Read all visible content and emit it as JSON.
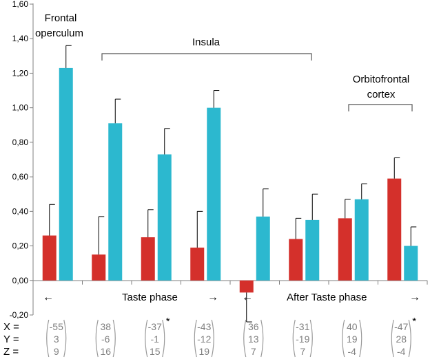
{
  "chart_data": {
    "type": "bar",
    "ylim": [
      -0.2,
      1.6
    ],
    "y_ticks": [
      "-0,20",
      "0,00",
      "0,20",
      "0,40",
      "0,60",
      "0,80",
      "1,00",
      "1,20",
      "1,40",
      "1,60"
    ],
    "y_tick_values": [
      -0.2,
      0,
      0.2,
      0.4,
      0.6,
      0.8,
      1.0,
      1.2,
      1.4,
      1.6
    ],
    "grid": false,
    "series": [
      {
        "name": "red",
        "color": "#d4302b",
        "values": [
          0.26,
          0.15,
          0.25,
          0.19,
          -0.07,
          0.24,
          0.36,
          0.59
        ],
        "errors": [
          0.18,
          0.22,
          0.16,
          0.21,
          0.17,
          0.12,
          0.11,
          0.12
        ]
      },
      {
        "name": "cyan",
        "color": "#2cb8cf",
        "values": [
          1.23,
          0.91,
          0.73,
          1.0,
          0.37,
          0.35,
          0.47,
          0.2
        ],
        "errors": [
          0.13,
          0.14,
          0.15,
          0.1,
          0.16,
          0.15,
          0.09,
          0.11
        ]
      }
    ],
    "annotations": {
      "frontal_line1": "Frontal",
      "frontal_line2": "operculum",
      "insula": "Insula",
      "orbito_line1": "Orbitofrontal",
      "orbito_line2": "cortex",
      "taste_phase": "Taste phase",
      "after_taste_phase": "After Taste phase",
      "arrow_left": "←",
      "arrow_right": "→"
    },
    "coordinate_labels": [
      "X =",
      "Y =",
      "Z ="
    ],
    "coordinates": [
      {
        "x": "-55",
        "y": "3",
        "z": "9",
        "star": ""
      },
      {
        "x": "38",
        "y": "-6",
        "z": "16",
        "star": ""
      },
      {
        "x": "-37",
        "y": "-1",
        "z": "15",
        "star": "*"
      },
      {
        "x": "-43",
        "y": "-12",
        "z": "19",
        "star": ""
      },
      {
        "x": "36",
        "y": "13",
        "z": "7",
        "star": ""
      },
      {
        "x": "-31",
        "y": "-19",
        "z": "7",
        "star": ""
      },
      {
        "x": "40",
        "y": "19",
        "z": "-4",
        "star": ""
      },
      {
        "x": "-47",
        "y": "28",
        "z": "-4",
        "star": "*"
      }
    ]
  }
}
